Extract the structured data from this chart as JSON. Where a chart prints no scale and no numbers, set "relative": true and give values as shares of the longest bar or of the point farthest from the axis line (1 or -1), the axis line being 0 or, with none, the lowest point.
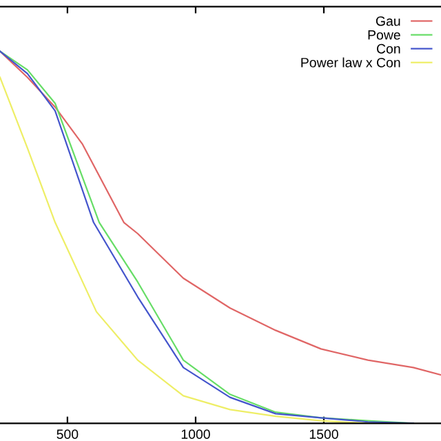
{
  "chart_data": {
    "type": "line",
    "relative": true,
    "xlim": [
      237,
      1957
    ],
    "xticks": [
      500,
      1000,
      1500
    ],
    "legend": "top right",
    "tick_labels": "x",
    "series": [
      {
        "name": "Gau",
        "color": "#e06666",
        "x": [
          237,
          344,
          452,
          559,
          720,
          774,
          952,
          1134,
          1312,
          1489,
          1672,
          1849,
          1957
        ],
        "values": [
          1.0,
          0.93,
          0.85,
          0.75,
          0.54,
          0.51,
          0.39,
          0.31,
          0.25,
          0.2,
          0.17,
          0.15,
          0.13
        ]
      },
      {
        "name": "Powe",
        "color": "#66dd66",
        "x": [
          237,
          344,
          452,
          624,
          774,
          952,
          1134,
          1312,
          1489,
          1672,
          1849
        ],
        "values": [
          1.0,
          0.95,
          0.86,
          0.54,
          0.38,
          0.17,
          0.078,
          0.03,
          0.015,
          0.007,
          0
        ]
      },
      {
        "name": "Con",
        "color": "#4455cc",
        "x": [
          237,
          344,
          452,
          602,
          774,
          952,
          1134,
          1312,
          1489,
          1672,
          1849
        ],
        "values": [
          1.0,
          0.94,
          0.84,
          0.54,
          0.34,
          0.15,
          0.07,
          0.026,
          0.015,
          0.004,
          0
        ]
      },
      {
        "name": "Power law x Con",
        "color": "#eeee66",
        "x": [
          237,
          344,
          452,
          613,
          774,
          952,
          1134,
          1312,
          1489,
          1672
        ],
        "values": [
          0.93,
          0.74,
          0.54,
          0.3,
          0.17,
          0.074,
          0.037,
          0.019,
          0.007,
          0
        ]
      }
    ]
  }
}
